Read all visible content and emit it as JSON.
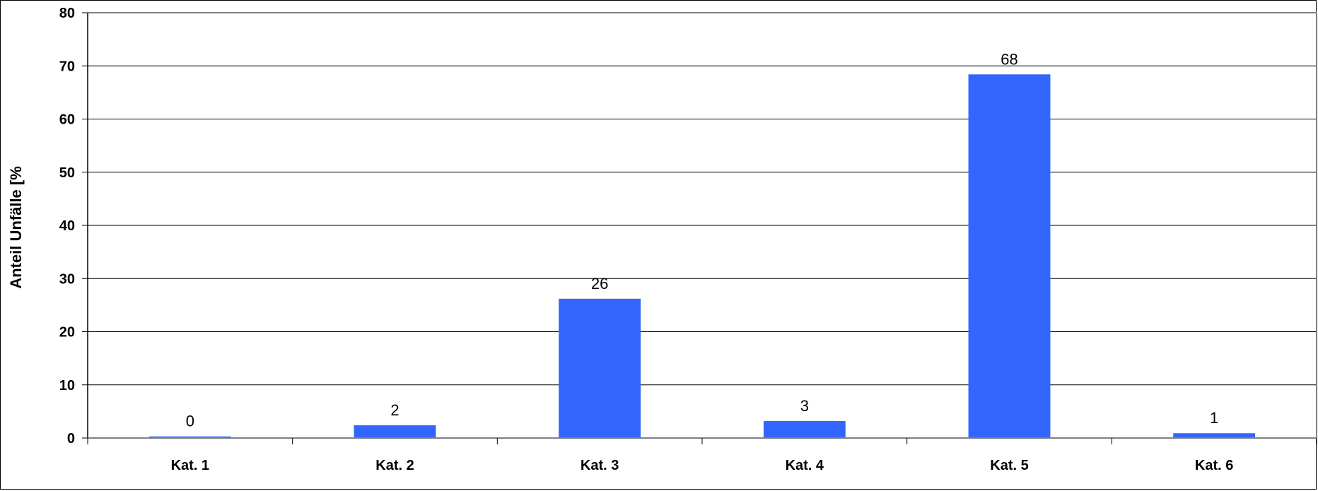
{
  "chart_data": {
    "type": "bar",
    "categories": [
      "Kat. 1",
      "Kat. 2",
      "Kat. 3",
      "Kat. 4",
      "Kat. 5",
      "Kat. 6"
    ],
    "values": [
      0.3,
      2.4,
      26.2,
      3.2,
      68.4,
      0.9
    ],
    "data_labels": [
      "0",
      "2",
      "26",
      "3",
      "68",
      "1"
    ],
    "yticks": [
      "0",
      "10",
      "20",
      "30",
      "40",
      "50",
      "60",
      "70",
      "80"
    ],
    "ylabel": "Anteil Unfälle [%",
    "xlabel": "",
    "ylim": [
      0,
      80
    ],
    "grid": true,
    "bar_color": "#3366FF",
    "legend": "none"
  }
}
